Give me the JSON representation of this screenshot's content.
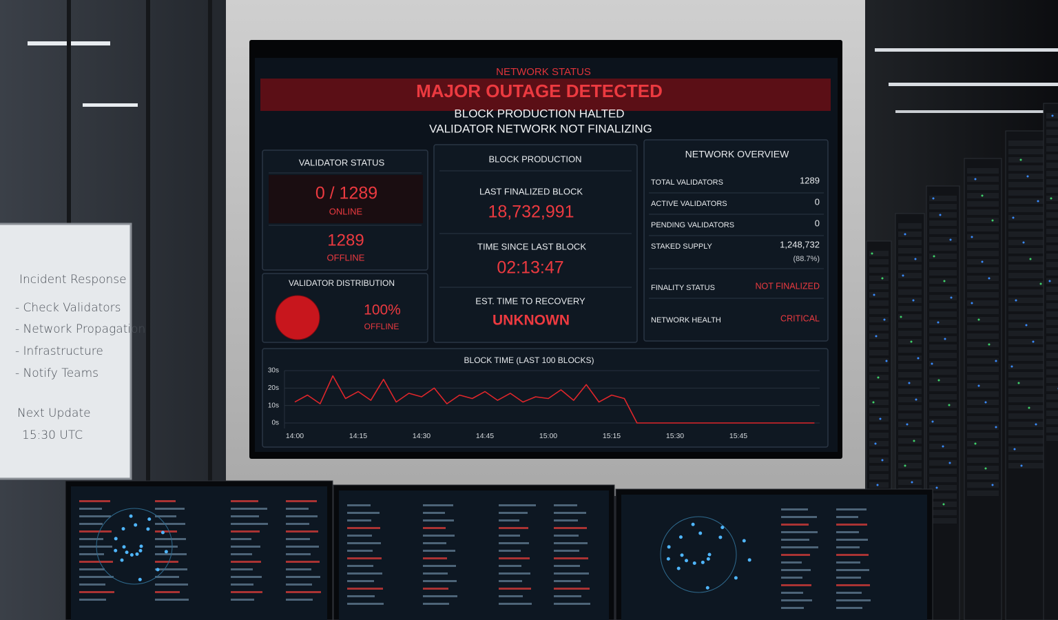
{
  "whiteboard": {
    "title": "Incident Response",
    "items": [
      "- Check Validators",
      "- Network Propagation",
      "- Infrastructure",
      "- Notify Teams"
    ],
    "next_update": "Next Update",
    "next_time": "15:30 UTC"
  },
  "dashboard": {
    "label": "NETWORK STATUS",
    "headline": "MAJOR OUTAGE DETECTED",
    "subline_1": "BLOCK PRODUCTION HALTED",
    "subline_2": "VALIDATOR NETWORK NOT FINALIZING",
    "validator_status": {
      "title": "VALIDATOR STATUS",
      "online_value": "0 / 1289",
      "online_label": "ONLINE",
      "offline_value": "1289",
      "offline_label": "OFFLINE"
    },
    "block_production": {
      "title": "BLOCK PRODUCTION",
      "items": [
        {
          "label": "LAST FINALIZED BLOCK",
          "value": "18,732,991"
        },
        {
          "label": "TIME SINCE LAST BLOCK",
          "value": "02:13:47"
        },
        {
          "label": "EST. TIME TO RECOVERY",
          "value": "UNKNOWN"
        }
      ]
    },
    "network_overview": {
      "title": "NETWORK OVERVIEW",
      "rows": [
        {
          "label": "TOTAL VALIDATORS",
          "value": "1289"
        },
        {
          "label": "ACTIVE VALIDATORS",
          "value": "0"
        },
        {
          "label": "PENDING VALIDATORS",
          "value": "0"
        },
        {
          "label": "STAKED SUPPLY",
          "value": "1,248,732",
          "note": "(88.7%)"
        },
        {
          "label": "FINALITY STATUS",
          "value": "NOT FINALIZED"
        },
        {
          "label": "NETWORK HEALTH",
          "value": "CRITICAL"
        }
      ]
    }
  },
  "chart_data": [
    {
      "type": "pie",
      "title": "VALIDATOR DISTRIBUTION",
      "categories": [
        "OFFLINE"
      ],
      "values": [
        100
      ],
      "value_labels": [
        "100%"
      ],
      "color": "#c8161d"
    },
    {
      "type": "line",
      "title": "BLOCK TIME (LAST 100 BLOCKS)",
      "categories": [
        "14:00",
        null,
        null,
        null,
        null,
        "14:15",
        null,
        null,
        null,
        null,
        "14:30",
        null,
        null,
        null,
        null,
        "14:45",
        null,
        null,
        null,
        null,
        "15:00",
        null,
        null,
        null,
        null,
        "15:15",
        null,
        null,
        null,
        null,
        "15:30",
        null,
        null,
        null,
        null,
        "15:45",
        null,
        null,
        null,
        null,
        null,
        null
      ],
      "values": [
        12,
        16,
        11,
        27,
        14,
        18,
        13,
        25,
        12,
        17,
        15,
        20,
        11,
        16,
        14,
        18,
        13,
        17,
        12,
        15,
        14,
        19,
        13,
        22,
        12,
        16,
        14,
        0,
        0,
        0,
        0,
        0,
        0,
        0,
        0,
        0,
        0,
        0,
        0,
        0,
        0,
        0
      ],
      "color": "#e0262b",
      "ylim": [
        0,
        30
      ],
      "yticks": [
        {
          "value": 0,
          "label": "0s"
        },
        {
          "value": 10,
          "label": "10s"
        },
        {
          "value": 20,
          "label": "20s"
        },
        {
          "value": 30,
          "label": "30s"
        }
      ],
      "grid": true
    }
  ]
}
